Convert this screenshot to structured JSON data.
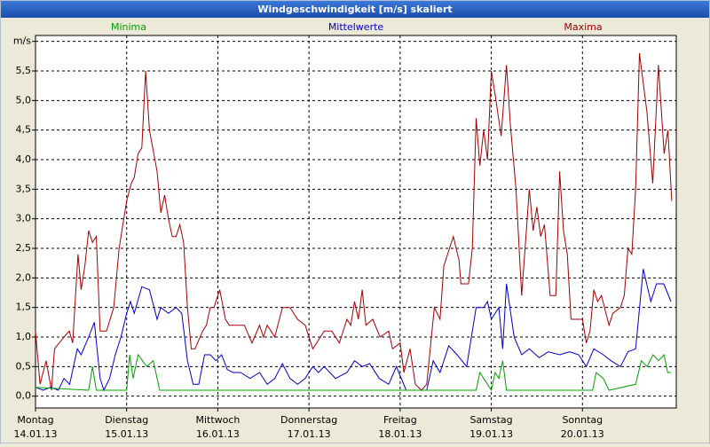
{
  "chart_data": {
    "type": "line",
    "title": "Windgeschwindigkeit [m/s] skaliert",
    "legend": "top",
    "grid": true,
    "xlim": [
      0,
      168.7
    ],
    "ylim": [
      -0.2,
      6.1
    ],
    "xticks": [
      {
        "value": 0,
        "label": "Montag",
        "date": "14.01.13"
      },
      {
        "value": 24,
        "label": "Dienstag",
        "date": "15.01.13"
      },
      {
        "value": 48,
        "label": "Mittwoch",
        "date": "16.01.13"
      },
      {
        "value": 72,
        "label": "Donnerstag",
        "date": "17.01.13"
      },
      {
        "value": 96,
        "label": "Freitag",
        "date": "18.01.13"
      },
      {
        "value": 120,
        "label": "Samstag",
        "date": "19.01.13"
      },
      {
        "value": 144,
        "label": "Sonntag",
        "date": "20.01.13"
      }
    ],
    "yticks": [
      {
        "value": 0,
        "label": "0,0"
      },
      {
        "value": 0.5,
        "label": "0,5"
      },
      {
        "value": 1,
        "label": "1,0"
      },
      {
        "value": 1.5,
        "label": "1,5"
      },
      {
        "value": 2,
        "label": "2,0"
      },
      {
        "value": 2.5,
        "label": "2,5"
      },
      {
        "value": 3,
        "label": "3,0"
      },
      {
        "value": 3.5,
        "label": "3,5"
      },
      {
        "value": 4,
        "label": "4,0"
      },
      {
        "value": 4.5,
        "label": "4,5"
      },
      {
        "value": 5,
        "label": "5,0"
      },
      {
        "value": 5.5,
        "label": "5,5"
      },
      {
        "value": 6,
        "label": "m/s"
      }
    ],
    "series": [
      {
        "name": "Minima",
        "color": "#00a000",
        "x": [
          0,
          14,
          15,
          16,
          24,
          24.8,
          25.7,
          27,
          29.3,
          31,
          32.7,
          116,
          117,
          118,
          119,
          120,
          121,
          122,
          123,
          124,
          146.7,
          147.6,
          149.5,
          151,
          158,
          159.5,
          161,
          162.6,
          164,
          165.5,
          166.4,
          167.3
        ],
        "values": [
          0.15,
          0.1,
          0.5,
          0.1,
          0.1,
          0.7,
          0.3,
          0.7,
          0.5,
          0.6,
          0.1,
          0.1,
          0.4,
          0.3,
          0.2,
          0.1,
          0.4,
          0.3,
          0.6,
          0.1,
          0.1,
          0.4,
          0.3,
          0.1,
          0.2,
          0.6,
          0.5,
          0.7,
          0.6,
          0.7,
          0.4,
          0.4
        ]
      },
      {
        "name": "Mittelwerte",
        "color": "#0000c0",
        "x": [
          0,
          2,
          4,
          6,
          7.5,
          9,
          11,
          12,
          14,
          15.5,
          17,
          18,
          19.5,
          21,
          22.5,
          24,
          25,
          26,
          28,
          30,
          32,
          33,
          35,
          37,
          38.5,
          40,
          41.5,
          43,
          44.5,
          46,
          47.5,
          49,
          50.5,
          52,
          54,
          56.5,
          59,
          61,
          63,
          65,
          67,
          69,
          71,
          73,
          74.5,
          76,
          79,
          82,
          84,
          86,
          88,
          90.5,
          93,
          95,
          97.6,
          100,
          103,
          104.7,
          106.5,
          108.8,
          111,
          113.5,
          116,
          118,
          119,
          120,
          122,
          123,
          124,
          126,
          128,
          130,
          132.6,
          135,
          138,
          140.6,
          143,
          145,
          147,
          149.5,
          151.5,
          154,
          156,
          158,
          160,
          162,
          163.5,
          165.4,
          167.3
        ],
        "values": [
          0.15,
          0.1,
          0.15,
          0.1,
          0.3,
          0.2,
          0.8,
          0.7,
          1.0,
          1.25,
          0.3,
          0.1,
          0.3,
          0.7,
          1.0,
          1.4,
          1.6,
          1.4,
          1.85,
          1.8,
          1.3,
          1.5,
          1.4,
          1.5,
          1.4,
          0.6,
          0.2,
          0.2,
          0.7,
          0.7,
          0.6,
          0.7,
          0.45,
          0.4,
          0.4,
          0.3,
          0.4,
          0.2,
          0.3,
          0.55,
          0.3,
          0.2,
          0.3,
          0.5,
          0.4,
          0.5,
          0.3,
          0.4,
          0.6,
          0.5,
          0.55,
          0.3,
          0.2,
          0.5,
          0.1,
          0.1,
          0.1,
          0.6,
          0.4,
          0.85,
          0.7,
          0.5,
          1.5,
          1.5,
          1.6,
          1.3,
          1.5,
          0.8,
          1.9,
          1.0,
          0.7,
          0.8,
          0.65,
          0.75,
          0.7,
          0.75,
          0.7,
          0.5,
          0.8,
          0.7,
          0.6,
          0.5,
          0.75,
          0.8,
          2.15,
          1.6,
          1.9,
          1.9,
          1.6
        ]
      },
      {
        "name": "Maxima",
        "color": "#a00000",
        "x": [
          0,
          1.2,
          2.8,
          4.2,
          5,
          7.5,
          8.9,
          9.8,
          11.2,
          12,
          13,
          14,
          15,
          16,
          17,
          18.7,
          20.6,
          22,
          24,
          25.2,
          26,
          27,
          28,
          29,
          30,
          32,
          33,
          34,
          35,
          36,
          37,
          38,
          39,
          40,
          41,
          42,
          44,
          45,
          46,
          47,
          48.5,
          50,
          51,
          52,
          55,
          57,
          59,
          60,
          61,
          63,
          65,
          67,
          69,
          71,
          73,
          74,
          76,
          78,
          80,
          82,
          83,
          84,
          85,
          86,
          87,
          88.8,
          90.7,
          93,
          94,
          96,
          97,
          98.6,
          100,
          101.6,
          103,
          105,
          106.5,
          107.5,
          110,
          111.5,
          112,
          114,
          115,
          116,
          117,
          118,
          119,
          120,
          121,
          122.6,
          124,
          125,
          126.5,
          128,
          130,
          131,
          132,
          133,
          134,
          135.5,
          137,
          138,
          139,
          140,
          141,
          142,
          144,
          145,
          146,
          147,
          148,
          149,
          151,
          152,
          154,
          155,
          156,
          157,
          158,
          159,
          161,
          162.5,
          164,
          165.5,
          166.5,
          167.5
        ],
        "values": [
          1.1,
          0.2,
          0.6,
          0.1,
          0.8,
          1.0,
          1.1,
          0.9,
          2.4,
          1.8,
          2.2,
          2.8,
          2.6,
          2.7,
          1.1,
          1.1,
          1.5,
          2.5,
          3.3,
          3.6,
          3.7,
          4.1,
          4.2,
          5.5,
          4.5,
          3.8,
          3.1,
          3.4,
          3.0,
          2.7,
          2.7,
          2.9,
          2.6,
          1.5,
          0.8,
          0.8,
          1.1,
          1.2,
          1.5,
          1.5,
          1.8,
          1.3,
          1.2,
          1.2,
          1.2,
          0.9,
          1.2,
          1.0,
          1.2,
          1.0,
          1.5,
          1.5,
          1.3,
          1.2,
          0.8,
          0.9,
          1.1,
          1.1,
          0.9,
          1.3,
          1.2,
          1.6,
          1.3,
          1.8,
          1.2,
          1.3,
          1.0,
          1.1,
          0.8,
          0.9,
          0.4,
          0.8,
          0.2,
          0.1,
          0.2,
          1.5,
          1.3,
          2.2,
          2.7,
          2.3,
          1.9,
          1.9,
          2.5,
          4.7,
          3.9,
          4.5,
          4.0,
          5.5,
          5.1,
          4.4,
          5.6,
          4.6,
          3.5,
          1.7,
          3.5,
          2.8,
          3.2,
          2.7,
          2.9,
          1.7,
          1.7,
          3.8,
          2.8,
          2.4,
          1.3,
          1.3,
          1.3,
          0.9,
          1.1,
          1.8,
          1.6,
          1.7,
          1.2,
          1.4,
          1.5,
          1.7,
          2.5,
          2.4,
          3.5,
          5.8,
          4.8,
          3.6,
          5.6,
          4.1,
          4.5,
          3.3
        ]
      }
    ]
  }
}
